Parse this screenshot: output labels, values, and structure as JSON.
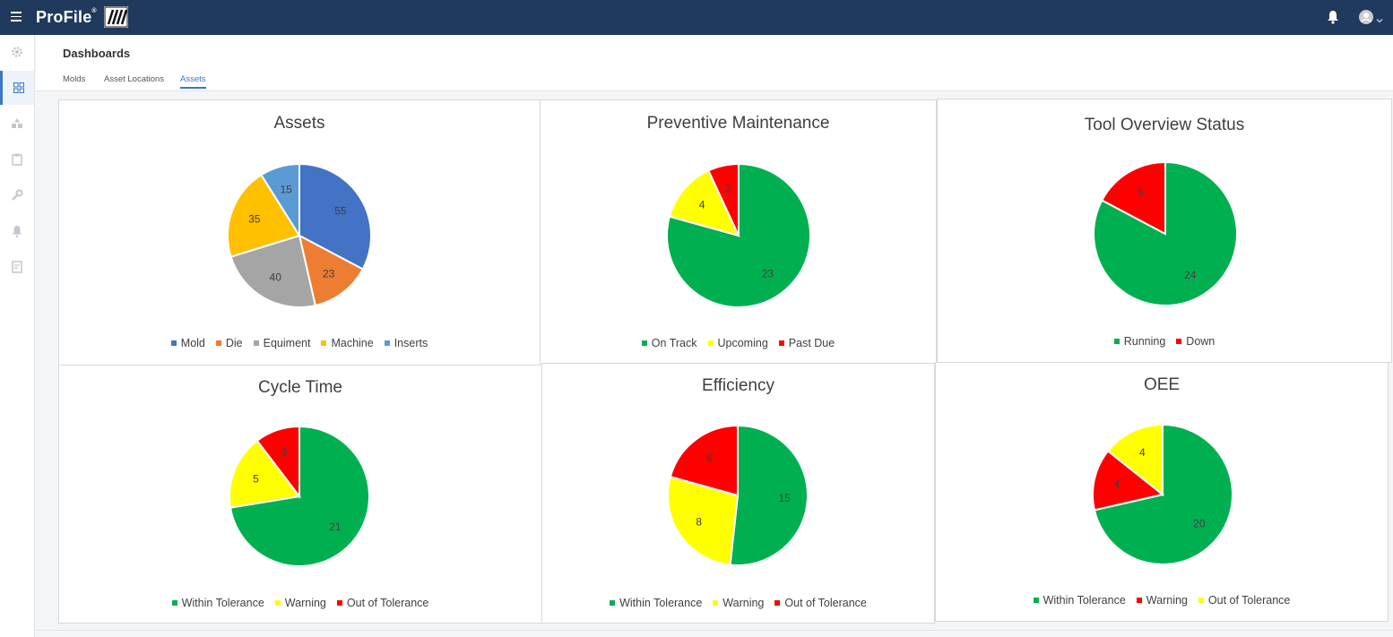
{
  "app": {
    "brand": "ProFile",
    "brand_mark": "®"
  },
  "header": {
    "title": "Dashboards"
  },
  "tabs": [
    {
      "label": "Molds",
      "active": false
    },
    {
      "label": "Asset Locations",
      "active": false
    },
    {
      "label": "Assets",
      "active": true
    }
  ],
  "sidebar": {
    "items": [
      {
        "icon": "gear-icon",
        "active": false
      },
      {
        "icon": "dashboard-grid-icon",
        "active": true
      },
      {
        "icon": "shapes-icon",
        "active": false
      },
      {
        "icon": "clipboard-icon",
        "active": false
      },
      {
        "icon": "wrench-icon",
        "active": false
      },
      {
        "icon": "bell-icon",
        "active": false
      },
      {
        "icon": "report-icon",
        "active": false
      }
    ]
  },
  "colors": {
    "topbar": "#203a5e",
    "accent": "#3a78c3"
  },
  "chart_data": [
    {
      "type": "pie",
      "title": "Assets",
      "categories": [
        "Mold",
        "Die",
        "Equiment",
        "Machine",
        "Inserts"
      ],
      "values": [
        55,
        23,
        40,
        35,
        15
      ],
      "colors": [
        "#4472c4",
        "#ed7d31",
        "#a5a5a5",
        "#ffc000",
        "#5b9bd5"
      ],
      "legend": "bottom"
    },
    {
      "type": "pie",
      "title": "Preventive Maintenance",
      "categories": [
        "On Track",
        "Upcoming",
        "Past Due"
      ],
      "values": [
        23,
        4,
        2
      ],
      "colors": [
        "#00b050",
        "#ffff00",
        "#ff0000"
      ],
      "legend": "bottom"
    },
    {
      "type": "pie",
      "title": "Tool Overview Status",
      "categories": [
        "Running",
        "Down"
      ],
      "values": [
        24,
        5
      ],
      "colors": [
        "#00b050",
        "#ff0000"
      ],
      "legend": "bottom"
    },
    {
      "type": "pie",
      "title": "Cycle Time",
      "categories": [
        "Within Tolerance",
        "Warning",
        "Out of Tolerance"
      ],
      "values": [
        21,
        5,
        3
      ],
      "colors": [
        "#00b050",
        "#ffff00",
        "#ff0000"
      ],
      "legend": "bottom"
    },
    {
      "type": "pie",
      "title": "Efficiency",
      "categories": [
        "Within Tolerance",
        "Warning",
        "Out of Tolerance"
      ],
      "values": [
        15,
        8,
        6
      ],
      "colors": [
        "#00b050",
        "#ffff00",
        "#ff0000"
      ],
      "legend": "bottom"
    },
    {
      "type": "pie",
      "title": "OEE",
      "categories": [
        "Within Tolerance",
        "Warning",
        "Out of Tolerance"
      ],
      "values": [
        20,
        4,
        4
      ],
      "colors": [
        "#00b050",
        "#ff0000",
        "#ffff00"
      ],
      "legend": "bottom"
    }
  ]
}
